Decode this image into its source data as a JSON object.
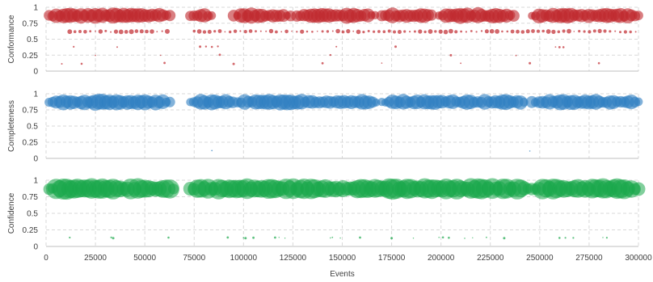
{
  "chart_data": {
    "type": "scatter",
    "xlabel": "Events",
    "xlim": [
      0,
      300000
    ],
    "xticks": [
      0,
      25000,
      50000,
      75000,
      100000,
      125000,
      150000,
      175000,
      200000,
      225000,
      250000,
      275000,
      300000
    ],
    "panels": [
      {
        "ylabel": "Conformance",
        "ylim": [
          0,
          1
        ],
        "yticks": [
          0,
          0.25,
          0.5,
          0.75,
          1
        ],
        "color": "#c0282d",
        "series": [
          {
            "y": 0.87,
            "size": "large",
            "segments": [
              [
                1500,
                63000
              ],
              [
                73000,
                84000
              ],
              [
                95000,
                124000
              ],
              [
                127000,
                167000
              ],
              [
                170000,
                196000
              ],
              [
                199000,
                237000
              ],
              [
                246000,
                300000
              ]
            ]
          },
          {
            "y": 0.62,
            "size": "small",
            "segments": [
              [
                12000,
                63000
              ],
              [
                75000,
                300000
              ]
            ]
          },
          {
            "y": 0.38,
            "size": "tiny",
            "x": [
              14000,
              36000,
              78000,
              81000,
              84000,
              87000,
              147000,
              177000,
              258000,
              260000,
              262000
            ]
          },
          {
            "y": 0.25,
            "size": "tiny",
            "x": [
              25000,
              58000,
              88000,
              144000,
              205000,
              238000
            ]
          },
          {
            "y": 0.12,
            "size": "tiny",
            "x": [
              8000,
              18000,
              60000,
              95000,
              140000,
              170000,
              210000,
              245000,
              280000
            ]
          }
        ]
      },
      {
        "ylabel": "Completeness",
        "ylim": [
          0,
          1
        ],
        "yticks": [
          0,
          0.25,
          0.5,
          0.75,
          1
        ],
        "color": "#2f7fc1",
        "series": [
          {
            "y": 0.87,
            "size": "large",
            "segments": [
              [
                1500,
                63000
              ],
              [
                73000,
                95000
              ],
              [
                97000,
                168000
              ],
              [
                170000,
                243000
              ],
              [
                246000,
                300000
              ]
            ]
          },
          {
            "y": 0.12,
            "size": "tiny",
            "x": [
              84000,
              245000
            ]
          }
        ]
      },
      {
        "ylabel": "Confidence",
        "ylim": [
          0,
          1
        ],
        "yticks": [
          0,
          0.25,
          0.5,
          0.75,
          1
        ],
        "color": "#1aa84a",
        "series": [
          {
            "y": 0.87,
            "size": "large",
            "segments": [
              [
                1500,
                66000
              ],
              [
                73000,
                245000
              ],
              [
                246000,
                300000
              ]
            ]
          },
          {
            "y": 0.13,
            "size": "tiny",
            "x": [
              12000,
              33000,
              34000,
              62000,
              92000,
              100000,
              101000,
              105000,
              116000,
              118000,
              121000,
              144000,
              145000,
              149000,
              159000,
              175000,
              186000,
              199000,
              201000,
              204000,
              212000,
              216000,
              223000,
              232000,
              260000,
              263000,
              267000,
              282000,
              284000
            ]
          }
        ]
      }
    ]
  }
}
